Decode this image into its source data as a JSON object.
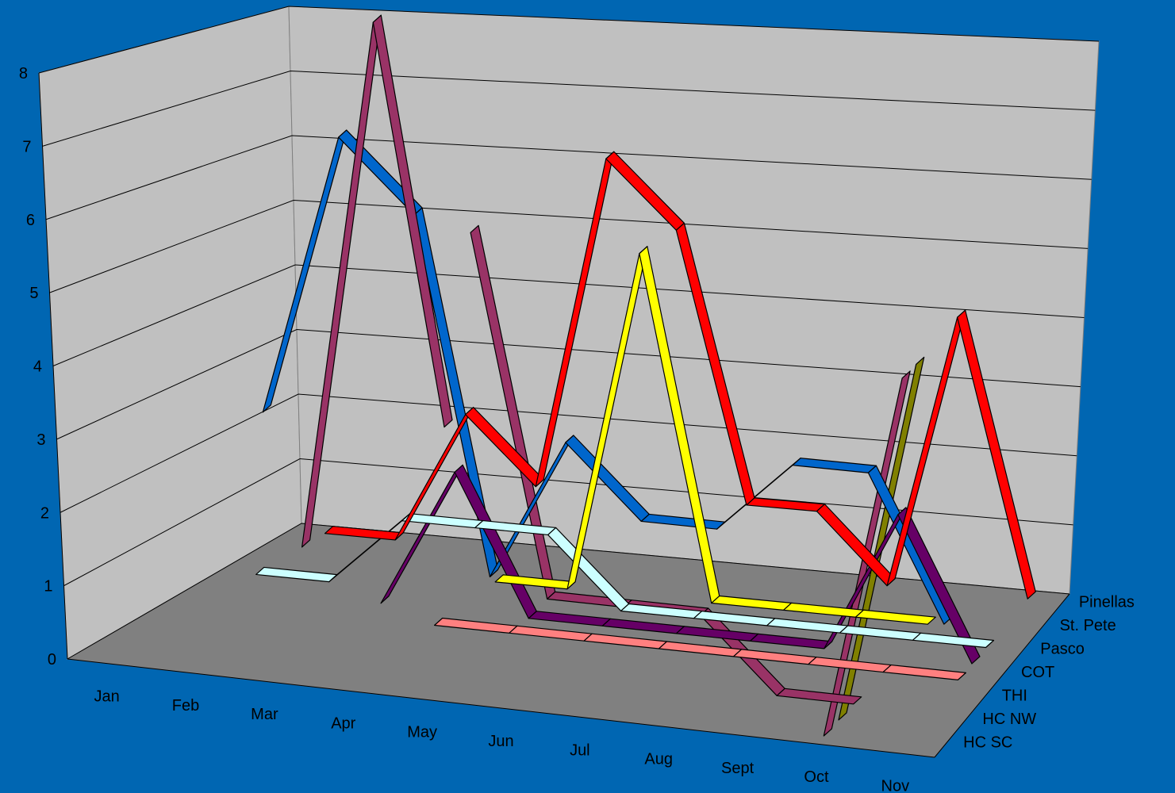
{
  "chart_data": {
    "type": "line",
    "view": "3d",
    "title": "",
    "xlabel": "",
    "ylabel": "",
    "ylim": [
      0,
      8
    ],
    "y_ticks": [
      "0",
      "1",
      "2",
      "3",
      "4",
      "5",
      "6",
      "7",
      "8"
    ],
    "grid": "horizontal",
    "legend": "none",
    "categories": [
      "Jan",
      "Feb",
      "Mar",
      "Apr",
      "May",
      "Jun",
      "Jul",
      "Aug",
      "Sept",
      "Oct",
      "Nov"
    ],
    "series": [
      {
        "name": "HC SC",
        "color": "#ff0000",
        "values": [
          0,
          0,
          2,
          1,
          6,
          5,
          1,
          1,
          0,
          4,
          0
        ]
      },
      {
        "name": "HC NW",
        "color": "#993366",
        "values": [
          0,
          8,
          2,
          null,
          null,
          null,
          null,
          null,
          null,
          null,
          null
        ]
      },
      {
        "name": "THI",
        "color": "#ffff00",
        "values": [
          null,
          null,
          null,
          0,
          0,
          5,
          0,
          0,
          0,
          0,
          null
        ]
      },
      {
        "name": "COT",
        "color": "#ccffff",
        "values": [
          0,
          0,
          1,
          1,
          1,
          0,
          0,
          0,
          0,
          0,
          0
        ]
      },
      {
        "name": "Pasco",
        "color": "#660066",
        "values": [
          null,
          null,
          0,
          2,
          0,
          0,
          0,
          0,
          0,
          2,
          0
        ]
      },
      {
        "name": "St. Pete",
        "color": "#ff8080",
        "values": [
          null,
          null,
          null,
          0,
          0,
          0,
          0,
          0,
          0,
          0,
          0
        ]
      },
      {
        "name": "Pinellas",
        "color": "#0066cc",
        "values": [
          null,
          3,
          7,
          6,
          1,
          3,
          2,
          2,
          3,
          3,
          1
        ]
      },
      {
        "name": "",
        "color": "#993366",
        "values": [
          null,
          null,
          null,
          null,
          6,
          1,
          1,
          1,
          0,
          0,
          null
        ]
      },
      {
        "name": "",
        "color": "#808000",
        "values": [
          null,
          null,
          null,
          null,
          null,
          null,
          null,
          null,
          null,
          0,
          5
        ]
      },
      {
        "name": "",
        "color": "#993366",
        "values": [
          null,
          null,
          null,
          null,
          null,
          null,
          null,
          null,
          null,
          0,
          5
        ]
      }
    ],
    "z_categories": [
      "Pinellas",
      "St. Pete",
      "Pasco",
      "COT",
      "THI",
      "HC NW",
      "HC SC"
    ]
  }
}
